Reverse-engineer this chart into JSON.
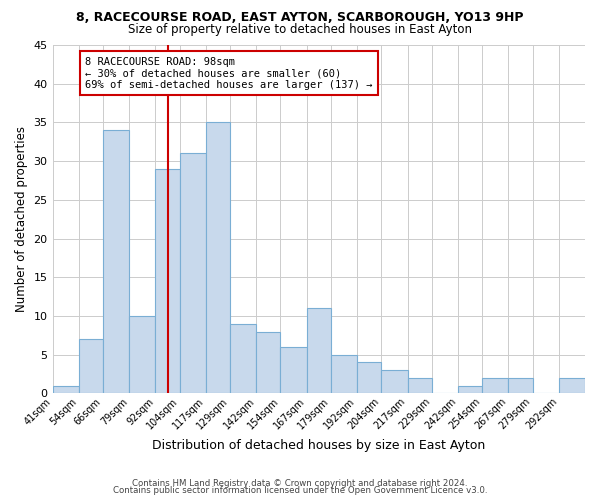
{
  "title1": "8, RACECOURSE ROAD, EAST AYTON, SCARBOROUGH, YO13 9HP",
  "title2": "Size of property relative to detached houses in East Ayton",
  "xlabel": "Distribution of detached houses by size in East Ayton",
  "ylabel": "Number of detached properties",
  "bin_labels": [
    "41sqm",
    "54sqm",
    "66sqm",
    "79sqm",
    "92sqm",
    "104sqm",
    "117sqm",
    "129sqm",
    "142sqm",
    "154sqm",
    "167sqm",
    "179sqm",
    "192sqm",
    "204sqm",
    "217sqm",
    "229sqm",
    "242sqm",
    "254sqm",
    "267sqm",
    "279sqm",
    "292sqm"
  ],
  "bar_values": [
    1,
    7,
    34,
    10,
    29,
    31,
    35,
    9,
    8,
    6,
    11,
    5,
    4,
    3,
    2,
    0,
    1,
    2,
    2,
    0,
    2
  ],
  "bar_color": "#c8d9ec",
  "bar_edge_color": "#7aaed4",
  "vline_x": 98,
  "vline_color": "#cc0000",
  "annotation_line1": "8 RACECOURSE ROAD: 98sqm",
  "annotation_line2": "← 30% of detached houses are smaller (60)",
  "annotation_line3": "69% of semi-detached houses are larger (137) →",
  "annotation_box_color": "#cc0000",
  "ylim": [
    0,
    45
  ],
  "yticks": [
    0,
    5,
    10,
    15,
    20,
    25,
    30,
    35,
    40,
    45
  ],
  "footer1": "Contains HM Land Registry data © Crown copyright and database right 2024.",
  "footer2": "Contains public sector information licensed under the Open Government Licence v3.0.",
  "bg_color": "#ffffff",
  "grid_color": "#cccccc",
  "bin_edges": [
    41,
    54,
    66,
    79,
    92,
    104,
    117,
    129,
    142,
    154,
    167,
    179,
    192,
    204,
    217,
    229,
    242,
    254,
    267,
    279,
    292,
    305
  ]
}
